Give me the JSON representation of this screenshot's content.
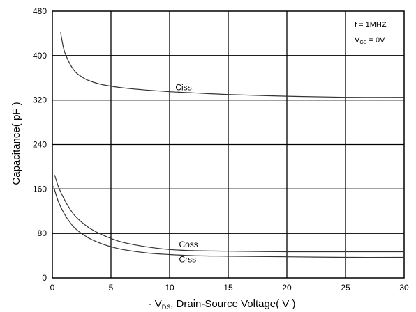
{
  "chart_data": {
    "type": "line",
    "xlabel": {
      "prefix": "- V",
      "sub": "DS",
      "rest": ", Drain-Source Voltage( V )"
    },
    "ylabel": "Capacitance( pF )",
    "xlim": [
      0,
      30
    ],
    "ylim": [
      0,
      480
    ],
    "xticks": [
      0,
      5,
      10,
      15,
      20,
      25,
      30
    ],
    "yticks": [
      0,
      80,
      160,
      240,
      320,
      400,
      480
    ],
    "grid": true,
    "conditions": [
      {
        "main": "f = 1MHZ",
        "sub": "",
        "tail": ""
      },
      {
        "main": "V",
        "sub": "GS",
        "tail": " = 0V"
      }
    ],
    "series": [
      {
        "name": "Ciss",
        "x": [
          0.7,
          1,
          1.5,
          2,
          2.5,
          3,
          4,
          5,
          6,
          8,
          10,
          12,
          15,
          20,
          25,
          30
        ],
        "y": [
          442,
          410,
          385,
          370,
          362,
          356,
          349,
          345,
          342,
          338,
          335,
          333,
          330,
          327,
          325,
          325
        ]
      },
      {
        "name": "Coss",
        "x": [
          0.2,
          0.5,
          1,
          1.5,
          2,
          3,
          4,
          5,
          6,
          8,
          10,
          12,
          15,
          20,
          25,
          30
        ],
        "y": [
          185,
          165,
          142,
          124,
          110,
          92,
          80,
          71,
          64,
          56,
          51,
          49,
          48,
          47,
          47,
          47
        ]
      },
      {
        "name": "Crss",
        "x": [
          0.1,
          0.5,
          1,
          1.5,
          2,
          3,
          4,
          5,
          6,
          8,
          10,
          12,
          15,
          20,
          25,
          30
        ],
        "y": [
          165,
          138,
          116,
          100,
          88,
          73,
          63,
          56,
          51,
          45,
          42,
          40,
          39,
          38,
          37,
          37
        ]
      }
    ],
    "series_label_positions": [
      {
        "name": "Ciss",
        "x": 10.5,
        "y": 338
      },
      {
        "name": "Coss",
        "x": 10.8,
        "y": 55
      },
      {
        "name": "Crss",
        "x": 10.8,
        "y": 28
      }
    ]
  }
}
